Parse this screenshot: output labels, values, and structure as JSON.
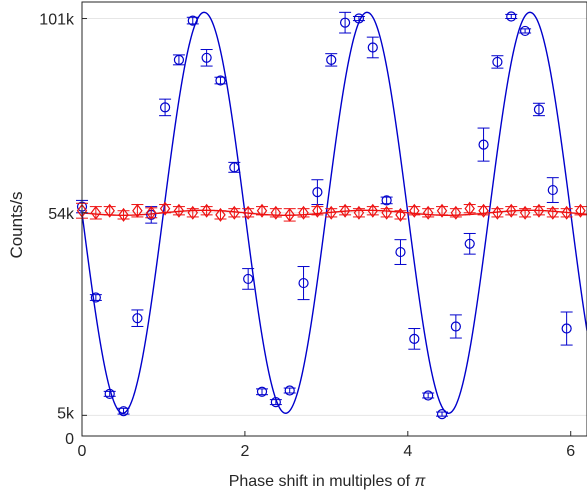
{
  "chart_data": {
    "type": "scatter",
    "title": "",
    "xlabel": "Phase shift in multiples of ",
    "xlabel_symbol": "π",
    "ylabel": "Counts/s",
    "xlim": [
      0,
      6.2
    ],
    "ylim": [
      0,
      105000
    ],
    "x_ticks": [
      0,
      2,
      4,
      6
    ],
    "x_tick_labels": [
      "0",
      "2",
      "4",
      "6"
    ],
    "y_ticks": [
      0,
      5000,
      54000,
      101000
    ],
    "y_tick_labels": [
      "0",
      "5k",
      "54k",
      "101k"
    ],
    "grid": "horizontal",
    "legend": "none",
    "colors": {
      "blue": "#0000cc",
      "red": "#ee1111",
      "grid": "#e6e6e6",
      "axis": "#262626"
    },
    "series": [
      {
        "marker": "circle",
        "color": "#0000cc",
        "points": [
          {
            "x": 0.0,
            "y": 55500,
            "err": 1500
          },
          {
            "x": 0.17,
            "y": 33500,
            "err": 700
          },
          {
            "x": 0.34,
            "y": 10200,
            "err": 600
          },
          {
            "x": 0.51,
            "y": 6000,
            "err": 700
          },
          {
            "x": 0.68,
            "y": 28500,
            "err": 2000
          },
          {
            "x": 0.85,
            "y": 53500,
            "err": 2000
          },
          {
            "x": 1.02,
            "y": 79500,
            "err": 2000
          },
          {
            "x": 1.19,
            "y": 91000,
            "err": 1200
          },
          {
            "x": 1.36,
            "y": 100500,
            "err": 800
          },
          {
            "x": 1.53,
            "y": 91500,
            "err": 2000
          },
          {
            "x": 1.7,
            "y": 86000,
            "err": 800
          },
          {
            "x": 1.87,
            "y": 65000,
            "err": 1200
          },
          {
            "x": 2.04,
            "y": 38000,
            "err": 2500
          },
          {
            "x": 2.21,
            "y": 10700,
            "err": 700
          },
          {
            "x": 2.38,
            "y": 8200,
            "err": 600
          },
          {
            "x": 2.55,
            "y": 11000,
            "err": 600
          },
          {
            "x": 2.72,
            "y": 37000,
            "err": 4000
          },
          {
            "x": 2.89,
            "y": 59000,
            "err": 3000
          },
          {
            "x": 3.06,
            "y": 91000,
            "err": 1500
          },
          {
            "x": 3.23,
            "y": 100000,
            "err": 2500
          },
          {
            "x": 3.4,
            "y": 101000,
            "err": 500
          },
          {
            "x": 3.57,
            "y": 94000,
            "err": 2500
          },
          {
            "x": 3.74,
            "y": 57000,
            "err": 800
          },
          {
            "x": 3.91,
            "y": 44500,
            "err": 3000
          },
          {
            "x": 4.08,
            "y": 23500,
            "err": 2500
          },
          {
            "x": 4.25,
            "y": 9800,
            "err": 600
          },
          {
            "x": 4.42,
            "y": 5300,
            "err": 500
          },
          {
            "x": 4.59,
            "y": 26500,
            "err": 2800
          },
          {
            "x": 4.76,
            "y": 46500,
            "err": 2500
          },
          {
            "x": 4.93,
            "y": 70500,
            "err": 4000
          },
          {
            "x": 5.1,
            "y": 90500,
            "err": 1500
          },
          {
            "x": 5.27,
            "y": 101500,
            "err": 500
          },
          {
            "x": 5.44,
            "y": 98000,
            "err": 500
          },
          {
            "x": 5.61,
            "y": 79000,
            "err": 1500
          },
          {
            "x": 5.78,
            "y": 59500,
            "err": 3000
          },
          {
            "x": 5.95,
            "y": 26000,
            "err": 4000
          }
        ]
      },
      {
        "marker": "diamond",
        "color": "#ee1111",
        "points": [
          {
            "x": 0.0,
            "y": 54500,
            "err": 1800
          },
          {
            "x": 0.17,
            "y": 54000,
            "err": 1500
          },
          {
            "x": 0.34,
            "y": 54500,
            "err": 1000
          },
          {
            "x": 0.51,
            "y": 53500,
            "err": 1000
          },
          {
            "x": 0.68,
            "y": 54500,
            "err": 1500
          },
          {
            "x": 0.85,
            "y": 54000,
            "err": 1200
          },
          {
            "x": 1.02,
            "y": 55000,
            "err": 1000
          },
          {
            "x": 1.19,
            "y": 54500,
            "err": 1000
          },
          {
            "x": 1.36,
            "y": 54000,
            "err": 1000
          },
          {
            "x": 1.53,
            "y": 54500,
            "err": 1000
          },
          {
            "x": 1.7,
            "y": 53500,
            "err": 1000
          },
          {
            "x": 1.87,
            "y": 54000,
            "err": 1000
          },
          {
            "x": 2.04,
            "y": 54000,
            "err": 1000
          },
          {
            "x": 2.21,
            "y": 54500,
            "err": 1000
          },
          {
            "x": 2.38,
            "y": 54000,
            "err": 1000
          },
          {
            "x": 2.55,
            "y": 53500,
            "err": 1500
          },
          {
            "x": 2.72,
            "y": 54000,
            "err": 1000
          },
          {
            "x": 2.89,
            "y": 54500,
            "err": 1000
          },
          {
            "x": 3.06,
            "y": 54000,
            "err": 1000
          },
          {
            "x": 3.23,
            "y": 54500,
            "err": 1000
          },
          {
            "x": 3.4,
            "y": 54000,
            "err": 1000
          },
          {
            "x": 3.57,
            "y": 54500,
            "err": 1000
          },
          {
            "x": 3.74,
            "y": 54000,
            "err": 1000
          },
          {
            "x": 3.91,
            "y": 53500,
            "err": 1000
          },
          {
            "x": 4.08,
            "y": 54500,
            "err": 1000
          },
          {
            "x": 4.25,
            "y": 54000,
            "err": 1000
          },
          {
            "x": 4.42,
            "y": 54500,
            "err": 1000
          },
          {
            "x": 4.59,
            "y": 54000,
            "err": 1000
          },
          {
            "x": 4.76,
            "y": 55000,
            "err": 1000
          },
          {
            "x": 4.93,
            "y": 54500,
            "err": 1000
          },
          {
            "x": 5.1,
            "y": 54000,
            "err": 1000
          },
          {
            "x": 5.27,
            "y": 54500,
            "err": 1000
          },
          {
            "x": 5.44,
            "y": 54000,
            "err": 1000
          },
          {
            "x": 5.61,
            "y": 54500,
            "err": 1000
          },
          {
            "x": 5.78,
            "y": 54000,
            "err": 1000
          },
          {
            "x": 5.95,
            "y": 54000,
            "err": 1000
          },
          {
            "x": 6.12,
            "y": 54500,
            "err": 1000
          }
        ]
      }
    ],
    "fits": [
      {
        "color": "#0000cc",
        "function": "sine",
        "offset": 54000,
        "amplitude": 48500,
        "period": 2.0,
        "phase_shift": 0.5,
        "x_range": [
          0,
          6.2
        ]
      },
      {
        "color": "#ee1111",
        "function": "sine",
        "offset": 54000,
        "amplitude": 600,
        "period": 2.0,
        "phase_shift": 0.5,
        "x_range": [
          0,
          6.2
        ]
      }
    ]
  }
}
